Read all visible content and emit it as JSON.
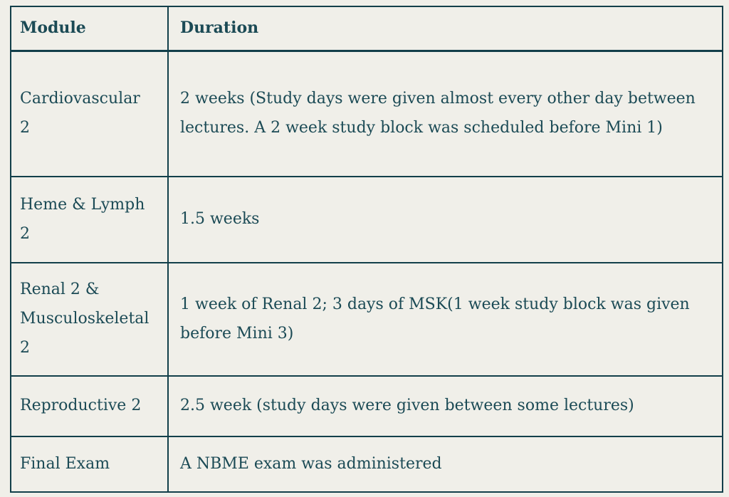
{
  "page": {
    "background_color": "#f0efe9",
    "text_color": "#1b4a55",
    "border_color": "#123f4a"
  },
  "table": {
    "header": {
      "module": "Module",
      "duration": "Duration"
    },
    "rows": [
      {
        "module": "Cardiovascular\n2",
        "duration": "2 weeks (Study days were given almost every other day between lectures. A 2 week study block was scheduled before Mini 1)"
      },
      {
        "module": "Heme & Lymph\n2",
        "duration": "1.5 weeks"
      },
      {
        "module": "Renal 2 &\nMusculoskeletal\n2",
        "duration": "1 week of Renal 2; 3 days of MSK(1 week study block was given before Mini 3)"
      },
      {
        "module": "Reproductive 2",
        "duration": "2.5 week (study days were given between some lectures)"
      },
      {
        "module": "Final Exam",
        "duration": "A NBME exam was administered"
      }
    ]
  }
}
